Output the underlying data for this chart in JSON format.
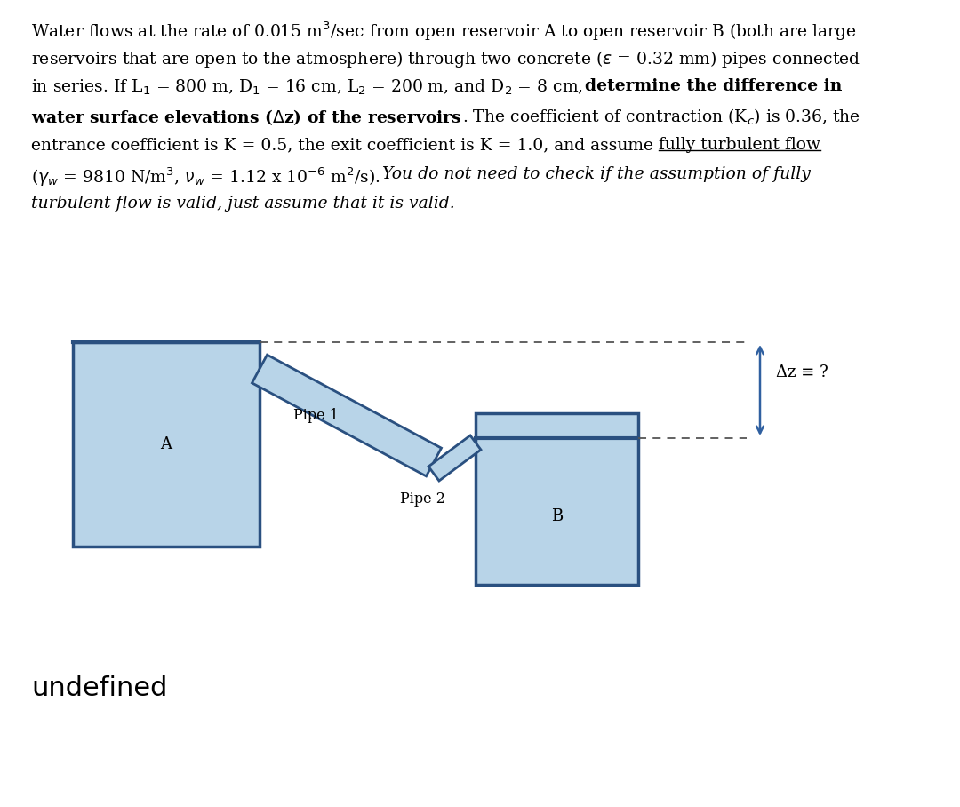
{
  "bg_color": "#ffffff",
  "text_color": "#000000",
  "pipe_fill": "#b8d4e8",
  "pipe_edge": "#2a5080",
  "reservoir_fill": "#b8d4e8",
  "reservoir_edge": "#2a5080",
  "arrow_color": "#3060a0",
  "dashed_color": "#555555",
  "undefined_text": "undefined",
  "pipe1_label": "Pipe 1",
  "pipe2_label": "Pipe 2",
  "label_A": "A",
  "label_B": "B",
  "dz_label": "Δz ≡ ?",
  "fontsize_body": 13.5,
  "fontsize_label": 13,
  "fontsize_undefined": 22
}
